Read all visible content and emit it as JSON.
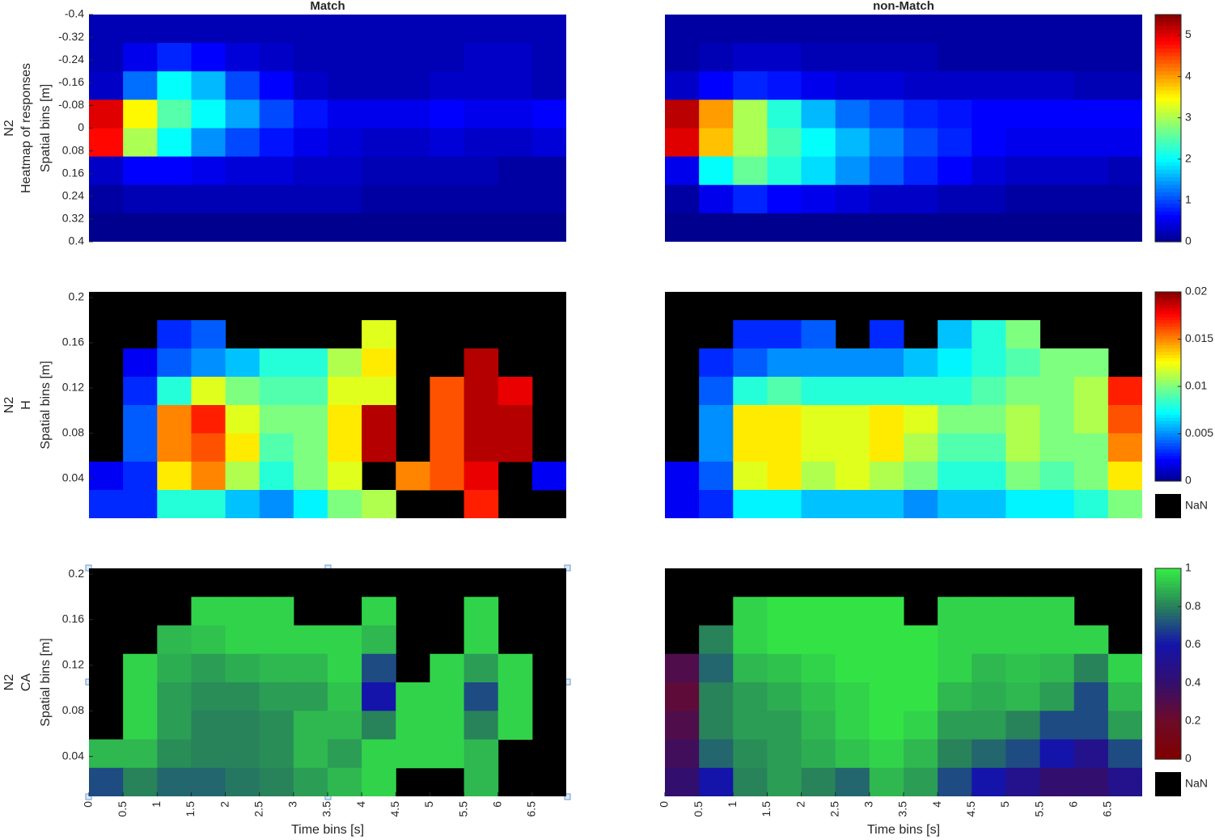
{
  "chart_data": [
    {
      "type": "heatmap",
      "title": "Match",
      "y_label": [
        "N2",
        "Heatmap of responses",
        "Spatial bins [m]"
      ],
      "colormap": "jet",
      "clim": [
        0,
        5.5
      ],
      "xlim": [
        0,
        7
      ],
      "ylim": [
        -0.4,
        0.4
      ],
      "y_reversed": true,
      "yticks": [
        -0.4,
        -0.32,
        -0.24,
        -0.16,
        -0.08,
        0,
        0.08,
        0.16,
        0.24,
        0.32,
        0.4
      ],
      "x": [
        0.25,
        0.75,
        1.25,
        1.75,
        2.25,
        2.75,
        3.25,
        3.75,
        4.25,
        4.75,
        5.25,
        5.75,
        6.25,
        6.75
      ],
      "y": [
        -0.35,
        -0.25,
        -0.15,
        -0.05,
        0.05,
        0.15,
        0.25,
        0.35
      ],
      "z": [
        [
          0.2,
          0.2,
          0.2,
          0.2,
          0.2,
          0.2,
          0.2,
          0.2,
          0.2,
          0.2,
          0.2,
          0.2,
          0.2,
          0.2
        ],
        [
          0.2,
          0.5,
          0.8,
          0.6,
          0.4,
          0.3,
          0.2,
          0.2,
          0.2,
          0.2,
          0.2,
          0.3,
          0.3,
          0.2
        ],
        [
          0.3,
          1.2,
          2.0,
          1.6,
          1.0,
          0.6,
          0.3,
          0.2,
          0.2,
          0.2,
          0.3,
          0.3,
          0.3,
          0.2
        ],
        [
          5.0,
          3.5,
          2.5,
          2.0,
          1.5,
          1.0,
          0.7,
          0.5,
          0.5,
          0.5,
          0.6,
          0.5,
          0.5,
          0.6
        ],
        [
          4.8,
          3.0,
          2.0,
          1.4,
          1.0,
          0.7,
          0.5,
          0.4,
          0.3,
          0.3,
          0.4,
          0.3,
          0.3,
          0.4
        ],
        [
          0.3,
          0.6,
          0.6,
          0.5,
          0.4,
          0.4,
          0.3,
          0.3,
          0.2,
          0.2,
          0.2,
          0.2,
          0.1,
          0.1
        ],
        [
          0.1,
          0.2,
          0.2,
          0.2,
          0.2,
          0.2,
          0.2,
          0.2,
          0.1,
          0.1,
          0.1,
          0.1,
          0.1,
          0.1
        ],
        [
          0,
          0,
          0,
          0,
          0,
          0,
          0,
          0,
          0,
          0,
          0,
          0,
          0,
          0
        ]
      ]
    },
    {
      "type": "heatmap",
      "title": "non-Match",
      "colormap": "jet",
      "clim": [
        0,
        5.5
      ],
      "xlim": [
        0,
        7
      ],
      "ylim": [
        -0.4,
        0.4
      ],
      "y_reversed": true,
      "colorbar": {
        "ticks": [
          0,
          1,
          2,
          3,
          4,
          5
        ]
      },
      "x": [
        0.25,
        0.75,
        1.25,
        1.75,
        2.25,
        2.75,
        3.25,
        3.75,
        4.25,
        4.75,
        5.25,
        5.75,
        6.25,
        6.75
      ],
      "y": [
        -0.35,
        -0.25,
        -0.15,
        -0.05,
        0.05,
        0.15,
        0.25,
        0.35
      ],
      "z": [
        [
          0.1,
          0.1,
          0.1,
          0.1,
          0.1,
          0.1,
          0.1,
          0.1,
          0.1,
          0.1,
          0.1,
          0.1,
          0.1,
          0.1
        ],
        [
          0.1,
          0.2,
          0.3,
          0.3,
          0.2,
          0.2,
          0.2,
          0.2,
          0.1,
          0.1,
          0.1,
          0.1,
          0.1,
          0.1
        ],
        [
          0.3,
          0.6,
          0.8,
          0.7,
          0.5,
          0.4,
          0.4,
          0.3,
          0.3,
          0.3,
          0.3,
          0.3,
          0.2,
          0.2
        ],
        [
          5.2,
          4.0,
          3.0,
          2.2,
          1.6,
          1.2,
          1.0,
          0.8,
          0.7,
          0.6,
          0.6,
          0.6,
          0.6,
          0.6
        ],
        [
          5.0,
          3.8,
          3.0,
          2.4,
          2.0,
          1.6,
          1.3,
          1.0,
          0.8,
          0.6,
          0.5,
          0.5,
          0.5,
          0.5
        ],
        [
          0.5,
          2.0,
          2.6,
          2.2,
          1.8,
          1.4,
          1.1,
          0.8,
          0.6,
          0.4,
          0.3,
          0.3,
          0.3,
          0.2
        ],
        [
          0.1,
          0.5,
          0.8,
          0.6,
          0.5,
          0.4,
          0.3,
          0.3,
          0.2,
          0.2,
          0.1,
          0.1,
          0.1,
          0.1
        ],
        [
          0,
          0,
          0,
          0,
          0,
          0,
          0,
          0,
          0,
          0,
          0,
          0,
          0,
          0
        ]
      ]
    },
    {
      "type": "heatmap",
      "y_label": [
        "N2",
        "H",
        "Spatial bins [m]"
      ],
      "colormap": "jet",
      "clim": [
        0,
        0.02
      ],
      "xlim": [
        0,
        7
      ],
      "ylim": [
        0.005,
        0.205
      ],
      "yticks": [
        0.04,
        0.08,
        0.12,
        0.16,
        0.2
      ],
      "x": [
        0.25,
        0.75,
        1.25,
        1.75,
        2.25,
        2.75,
        3.25,
        3.75,
        4.25,
        4.75,
        5.25,
        5.75,
        6.25,
        6.75
      ],
      "y": [
        0.1925,
        0.1675,
        0.1425,
        0.1175,
        0.0925,
        0.0675,
        0.0425,
        0.0175
      ],
      "z": [
        [
          null,
          null,
          null,
          null,
          null,
          null,
          null,
          null,
          null,
          null,
          null,
          null,
          null,
          null
        ],
        [
          null,
          null,
          0.003,
          0.004,
          null,
          null,
          null,
          null,
          0.012,
          null,
          null,
          null,
          null,
          null
        ],
        [
          null,
          0.002,
          0.004,
          0.005,
          0.006,
          0.008,
          0.008,
          0.011,
          0.013,
          null,
          null,
          0.019,
          null,
          null
        ],
        [
          null,
          0.003,
          0.008,
          0.012,
          0.01,
          0.009,
          0.009,
          0.012,
          0.012,
          null,
          0.016,
          0.019,
          0.018,
          null
        ],
        [
          null,
          0.004,
          0.015,
          0.017,
          0.012,
          0.01,
          0.01,
          0.013,
          0.019,
          null,
          0.016,
          0.019,
          0.019,
          null
        ],
        [
          null,
          0.004,
          0.015,
          0.016,
          0.013,
          0.009,
          0.01,
          0.013,
          0.019,
          null,
          0.016,
          0.019,
          0.019,
          null
        ],
        [
          0.002,
          0.003,
          0.013,
          0.015,
          0.011,
          0.008,
          0.01,
          0.012,
          null,
          0.015,
          0.016,
          0.018,
          null,
          0.002
        ],
        [
          0.003,
          0.003,
          0.008,
          0.008,
          0.006,
          0.005,
          0.007,
          0.01,
          0.011,
          null,
          null,
          0.017,
          null,
          null
        ]
      ]
    },
    {
      "type": "heatmap",
      "colormap": "jet",
      "clim": [
        0,
        0.02
      ],
      "xlim": [
        0,
        7
      ],
      "ylim": [
        0.005,
        0.205
      ],
      "colorbar": {
        "ticks": [
          0,
          0.005,
          0.01,
          0.015,
          0.02
        ],
        "nan_label": "NaN"
      },
      "x": [
        0.25,
        0.75,
        1.25,
        1.75,
        2.25,
        2.75,
        3.25,
        3.75,
        4.25,
        4.75,
        5.25,
        5.75,
        6.25,
        6.75
      ],
      "y": [
        0.1925,
        0.1675,
        0.1425,
        0.1175,
        0.0925,
        0.0675,
        0.0425,
        0.0175
      ],
      "z": [
        [
          null,
          null,
          null,
          null,
          null,
          null,
          null,
          null,
          null,
          null,
          null,
          null,
          null,
          null
        ],
        [
          null,
          null,
          0.003,
          0.003,
          0.004,
          null,
          0.003,
          null,
          0.006,
          0.008,
          0.01,
          null,
          null,
          null
        ],
        [
          null,
          0.003,
          0.004,
          0.005,
          0.005,
          0.005,
          0.005,
          0.006,
          0.007,
          0.008,
          0.009,
          0.01,
          0.01,
          null
        ],
        [
          null,
          0.004,
          0.008,
          0.009,
          0.008,
          0.008,
          0.008,
          0.008,
          0.008,
          0.009,
          0.01,
          0.01,
          0.011,
          0.017
        ],
        [
          null,
          0.005,
          0.013,
          0.013,
          0.012,
          0.012,
          0.013,
          0.012,
          0.01,
          0.01,
          0.011,
          0.01,
          0.011,
          0.016
        ],
        [
          null,
          0.005,
          0.013,
          0.013,
          0.012,
          0.012,
          0.013,
          0.011,
          0.009,
          0.009,
          0.011,
          0.01,
          0.01,
          0.015
        ],
        [
          0.002,
          0.004,
          0.012,
          0.013,
          0.011,
          0.012,
          0.011,
          0.01,
          0.008,
          0.008,
          0.01,
          0.009,
          0.01,
          0.013
        ],
        [
          0.002,
          0.003,
          0.007,
          0.007,
          0.006,
          0.006,
          0.006,
          0.005,
          0.006,
          0.006,
          0.007,
          0.007,
          0.008,
          0.01
        ]
      ]
    },
    {
      "type": "heatmap",
      "y_label": [
        "N2",
        "CA",
        "Spatial bins [m]"
      ],
      "x_label": "Time bins [s]",
      "colormap": "green",
      "clim": [
        0,
        1
      ],
      "xlim": [
        0,
        7
      ],
      "ylim": [
        0.005,
        0.205
      ],
      "yticks": [
        0.04,
        0.08,
        0.12,
        0.16,
        0.2
      ],
      "xticks": [
        0,
        0.5,
        1,
        1.5,
        2,
        2.5,
        3,
        3.5,
        4,
        4.5,
        5,
        5.5,
        6,
        6.5
      ],
      "x": [
        0.25,
        0.75,
        1.25,
        1.75,
        2.25,
        2.75,
        3.25,
        3.75,
        4.25,
        4.75,
        5.25,
        5.75,
        6.25,
        6.75
      ],
      "y": [
        0.1925,
        0.1675,
        0.1425,
        0.1175,
        0.0925,
        0.0675,
        0.0425,
        0.0175
      ],
      "z": [
        [
          null,
          null,
          null,
          null,
          null,
          null,
          null,
          null,
          null,
          null,
          null,
          null,
          null,
          null
        ],
        [
          null,
          null,
          null,
          0.95,
          0.95,
          0.95,
          null,
          null,
          0.95,
          null,
          null,
          0.95,
          null,
          null
        ],
        [
          null,
          null,
          0.9,
          0.92,
          0.95,
          0.95,
          0.95,
          0.95,
          0.9,
          null,
          null,
          0.95,
          null,
          null
        ],
        [
          null,
          0.95,
          0.88,
          0.85,
          0.88,
          0.9,
          0.9,
          0.95,
          0.7,
          null,
          0.95,
          0.85,
          0.95,
          null
        ],
        [
          null,
          0.95,
          0.85,
          0.82,
          0.82,
          0.85,
          0.85,
          0.92,
          0.6,
          0.95,
          0.95,
          0.7,
          0.95,
          null
        ],
        [
          null,
          0.95,
          0.85,
          0.8,
          0.8,
          0.82,
          0.9,
          0.9,
          0.8,
          0.95,
          0.95,
          0.8,
          0.95,
          null
        ],
        [
          0.9,
          0.9,
          0.82,
          0.8,
          0.8,
          0.82,
          0.9,
          0.85,
          0.95,
          0.95,
          0.95,
          0.9,
          null,
          null
        ],
        [
          0.7,
          0.8,
          0.75,
          0.75,
          0.78,
          0.8,
          0.85,
          0.9,
          0.95,
          null,
          null,
          0.9,
          null,
          null
        ]
      ]
    },
    {
      "type": "heatmap",
      "x_label": "Time bins [s]",
      "colormap": "green",
      "clim": [
        0,
        1
      ],
      "xlim": [
        0,
        7
      ],
      "ylim": [
        0.005,
        0.205
      ],
      "xticks": [
        0,
        0.5,
        1,
        1.5,
        2,
        2.5,
        3,
        3.5,
        4,
        4.5,
        5,
        5.5,
        6,
        6.5
      ],
      "colorbar": {
        "ticks": [
          0,
          0.2,
          0.4,
          0.6,
          0.8,
          1
        ],
        "nan_label": "NaN"
      },
      "x": [
        0.25,
        0.75,
        1.25,
        1.75,
        2.25,
        2.75,
        3.25,
        3.75,
        4.25,
        4.75,
        5.25,
        5.75,
        6.25,
        6.75
      ],
      "y": [
        0.1925,
        0.1675,
        0.1425,
        0.1175,
        0.0925,
        0.0675,
        0.0425,
        0.0175
      ],
      "z": [
        [
          null,
          null,
          null,
          null,
          null,
          null,
          null,
          null,
          null,
          null,
          null,
          null,
          null,
          null
        ],
        [
          null,
          null,
          0.95,
          0.98,
          0.98,
          0.98,
          0.98,
          null,
          0.95,
          0.95,
          0.95,
          0.95,
          null,
          null
        ],
        [
          null,
          0.8,
          0.95,
          0.98,
          0.98,
          0.98,
          0.98,
          0.98,
          0.95,
          0.95,
          0.95,
          0.95,
          0.95,
          null
        ],
        [
          0.3,
          0.75,
          0.9,
          0.92,
          0.95,
          0.98,
          0.98,
          0.98,
          0.95,
          0.9,
          0.92,
          0.9,
          0.8,
          0.95
        ],
        [
          0.25,
          0.8,
          0.85,
          0.88,
          0.92,
          0.95,
          0.98,
          0.98,
          0.9,
          0.88,
          0.9,
          0.85,
          0.7,
          0.9
        ],
        [
          0.3,
          0.8,
          0.85,
          0.85,
          0.9,
          0.95,
          0.98,
          0.95,
          0.85,
          0.85,
          0.8,
          0.7,
          0.7,
          0.85
        ],
        [
          0.35,
          0.75,
          0.82,
          0.85,
          0.88,
          0.92,
          0.95,
          0.9,
          0.8,
          0.75,
          0.7,
          0.6,
          0.5,
          0.7
        ],
        [
          0.4,
          0.6,
          0.8,
          0.85,
          0.8,
          0.75,
          0.9,
          0.85,
          0.7,
          0.6,
          0.5,
          0.4,
          0.4,
          0.5
        ]
      ]
    }
  ]
}
